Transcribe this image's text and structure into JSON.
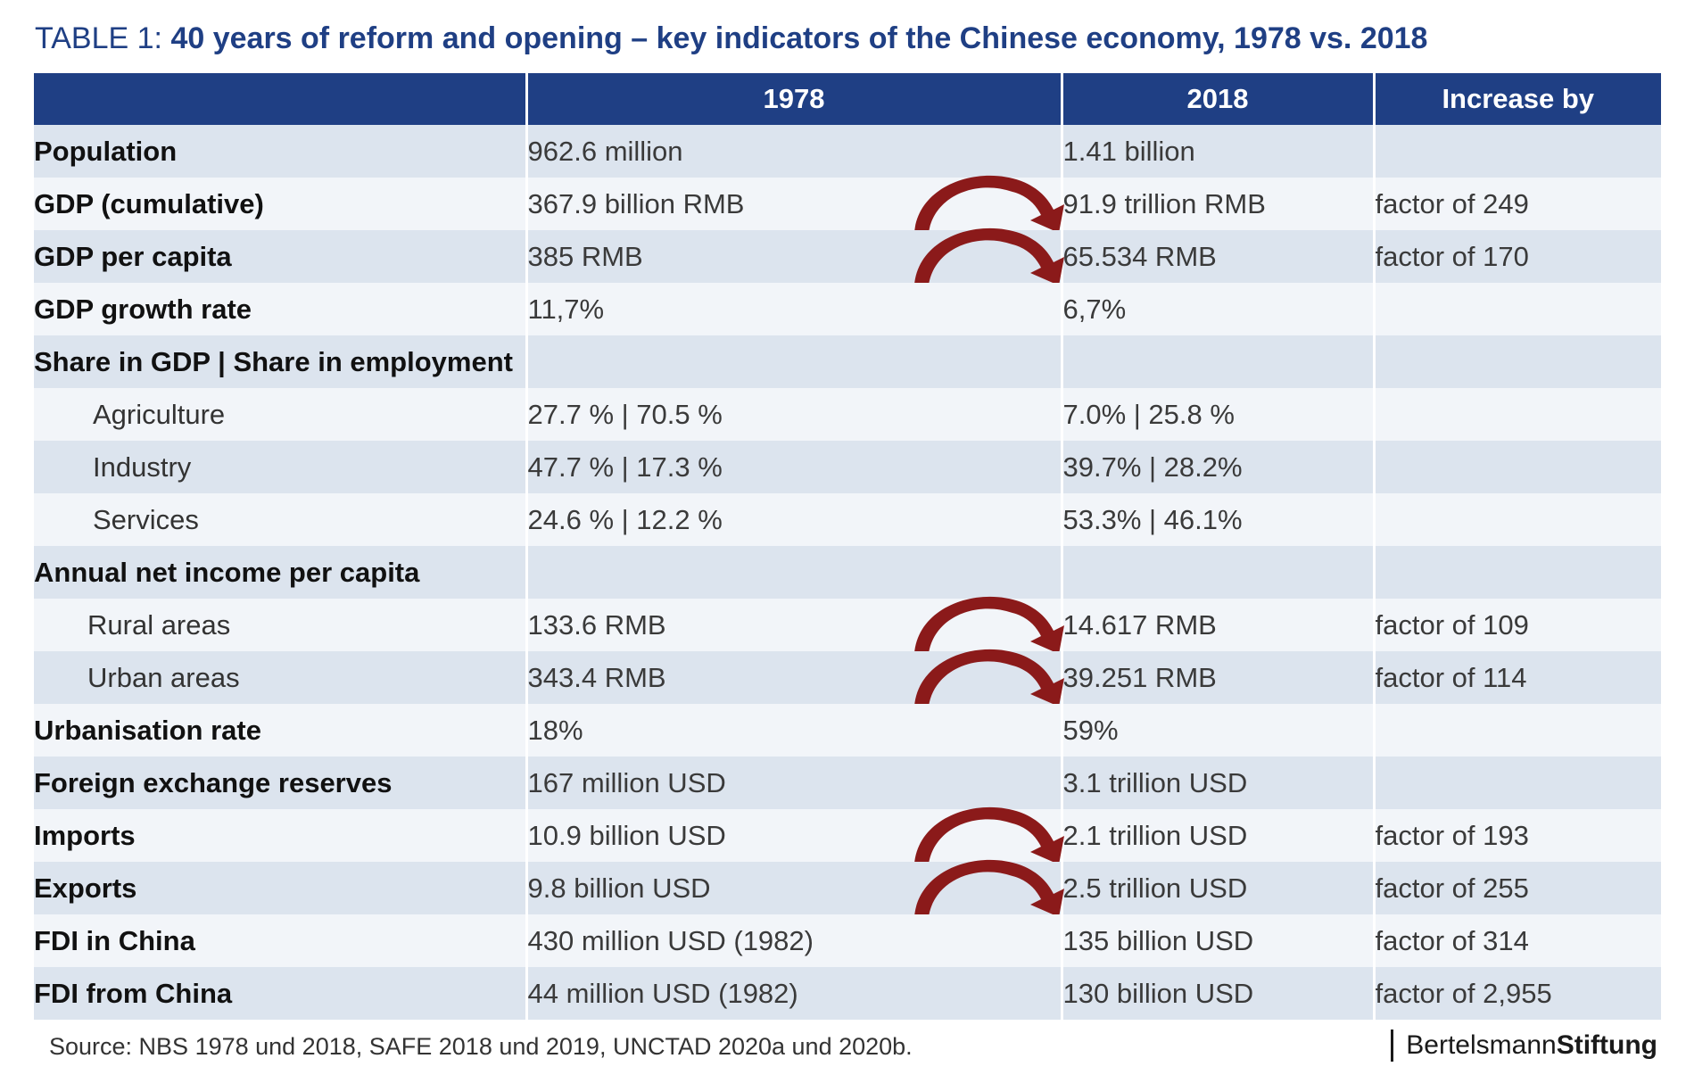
{
  "title": {
    "prefix": "TABLE 1:",
    "main": "40 years of reform and opening – key indicators of the Chinese economy, 1978 vs. 2018"
  },
  "colors": {
    "header_bg": "#1f3f84",
    "title": "#1f3f84",
    "row_dark": "#dce4ee",
    "row_light": "#f2f5f9",
    "arrow": "#8b1a1a"
  },
  "table": {
    "headers": [
      "",
      "1978",
      "2018",
      "Increase by"
    ],
    "rows": [
      {
        "label": "Population",
        "v1978": "962.6 million",
        "v2018": "1.41 billion",
        "increase": "",
        "arrow": false
      },
      {
        "label": "GDP (cumulative)",
        "v1978": "367.9 billion RMB",
        "v2018": "91.9 trillion RMB",
        "increase": "factor of 249",
        "arrow": true
      },
      {
        "label": "GDP per capita",
        "v1978": "385 RMB",
        "v2018": "65.534 RMB",
        "increase": "factor of 170",
        "arrow": true
      },
      {
        "label": "GDP growth rate",
        "v1978": "11,7%",
        "v2018": "6,7%",
        "increase": "",
        "arrow": false
      },
      {
        "label": "Share in GDP | Share in employment",
        "v1978": "",
        "v2018": "",
        "increase": "",
        "arrow": false
      },
      {
        "label": "Agriculture",
        "v1978": "27.7 % | 70.5 %",
        "v2018": "7.0%   | 25.8 %",
        "increase": "",
        "arrow": false
      },
      {
        "label": "Industry",
        "v1978": "47.7 % | 17.3 %",
        "v2018": "39.7% | 28.2%",
        "increase": "",
        "arrow": false
      },
      {
        "label": "Services",
        "v1978": "24.6 % | 12.2 %",
        "v2018": "53.3% | 46.1%",
        "increase": "",
        "arrow": false
      },
      {
        "label": "Annual net income per capita",
        "v1978": "",
        "v2018": "",
        "increase": "",
        "arrow": false
      },
      {
        "label": "Rural areas",
        "v1978": "133.6 RMB",
        "v2018": "14.617 RMB",
        "increase": "factor of 109",
        "arrow": true
      },
      {
        "label": "Urban areas",
        "v1978": "343.4 RMB",
        "v2018": "39.251 RMB",
        "increase": "factor of 114",
        "arrow": true
      },
      {
        "label": "Urbanisation rate",
        "v1978": "18%",
        "v2018": "59%",
        "increase": "",
        "arrow": false
      },
      {
        "label": "Foreign exchange reserves",
        "v1978": "167 million USD",
        "v2018": "3.1 trillion USD",
        "increase": "",
        "arrow": false
      },
      {
        "label": "Imports",
        "v1978": "10.9 billion USD",
        "v2018": "2.1 trillion USD",
        "increase": "factor of 193",
        "arrow": true
      },
      {
        "label": "Exports",
        "v1978": "9.8 billion USD",
        "v2018": "2.5 trillion USD",
        "increase": "factor of 255",
        "arrow": true
      },
      {
        "label": "FDI in China",
        "v1978": "430 million USD (1982)",
        "v2018": "135 billion USD",
        "increase": "factor of 314",
        "arrow": false
      },
      {
        "label": "FDI from China",
        "v1978": "44 million USD (1982)",
        "v2018": "130 billion USD",
        "increase": "factor of 2,955",
        "arrow": false
      }
    ]
  },
  "source": "Source: NBS 1978 und 2018, SAFE 2018 und 2019, UNCTAD 2020a und 2020b.",
  "brand": {
    "part1": "Bertelsmann",
    "part2": "Stiftung"
  }
}
